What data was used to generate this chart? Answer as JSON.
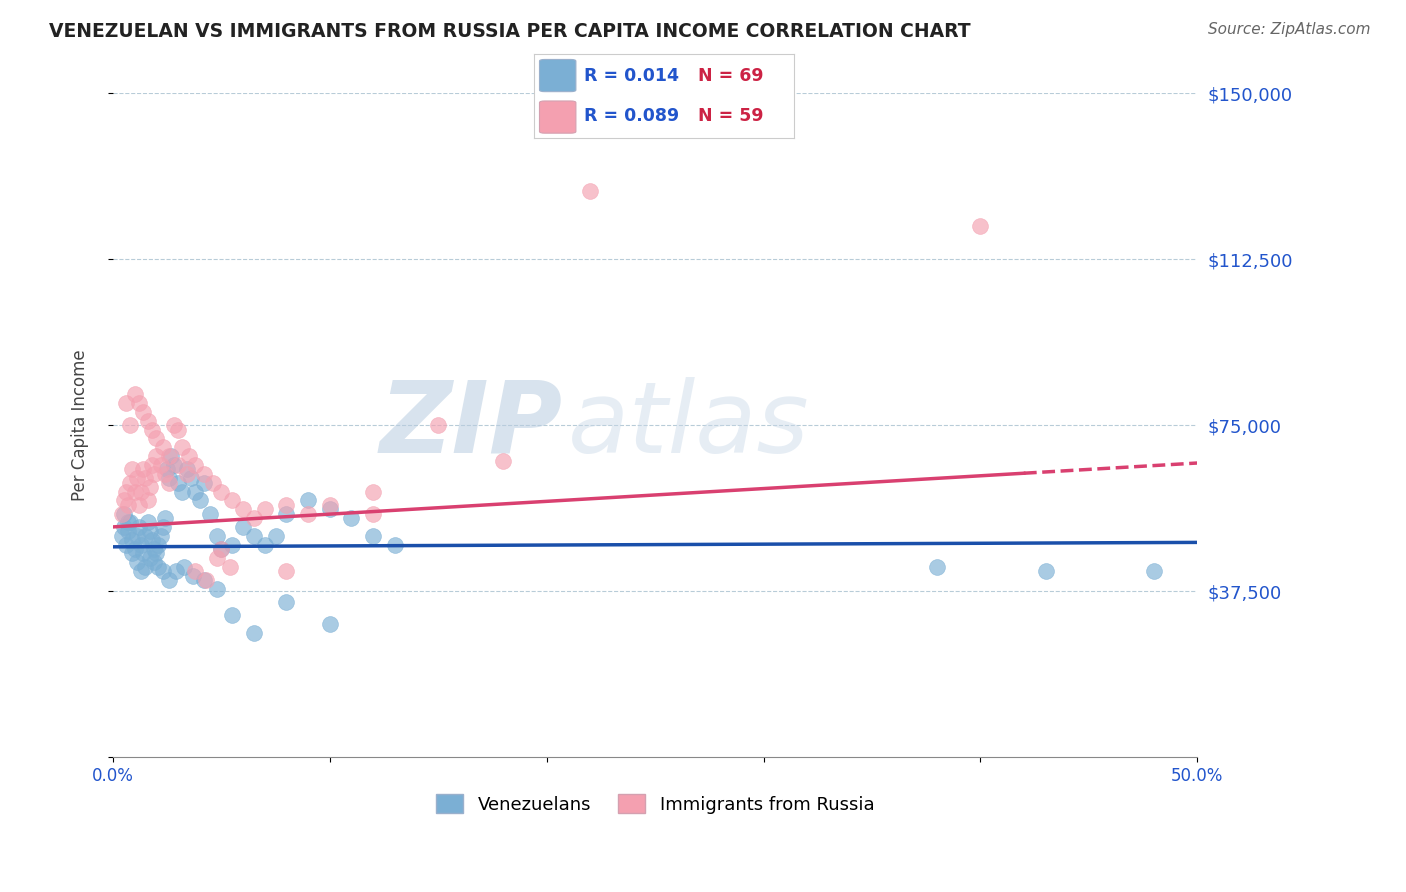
{
  "title": "VENEZUELAN VS IMMIGRANTS FROM RUSSIA PER CAPITA INCOME CORRELATION CHART",
  "source": "Source: ZipAtlas.com",
  "ylabel": "Per Capita Income",
  "yticks": [
    0,
    37500,
    75000,
    112500,
    150000
  ],
  "ytick_labels": [
    "",
    "$37,500",
    "$75,000",
    "$112,500",
    "$150,000"
  ],
  "xlim": [
    0.0,
    0.5
  ],
  "ylim": [
    0,
    150000
  ],
  "legend_r1": "R = 0.014",
  "legend_n1": "N = 69",
  "legend_r2": "R = 0.089",
  "legend_n2": "N = 59",
  "legend_label1": "Venezuelans",
  "legend_label2": "Immigrants from Russia",
  "blue_color": "#7bafd4",
  "pink_color": "#f4a0b0",
  "line_blue": "#1a4faa",
  "line_pink": "#d94070",
  "watermark_zip": "ZIP",
  "watermark_atlas": "atlas",
  "venezuelan_x": [
    0.004,
    0.005,
    0.006,
    0.007,
    0.008,
    0.009,
    0.01,
    0.011,
    0.012,
    0.013,
    0.014,
    0.015,
    0.016,
    0.017,
    0.018,
    0.019,
    0.02,
    0.021,
    0.022,
    0.023,
    0.024,
    0.025,
    0.026,
    0.027,
    0.028,
    0.03,
    0.032,
    0.034,
    0.036,
    0.038,
    0.04,
    0.042,
    0.045,
    0.048,
    0.05,
    0.055,
    0.06,
    0.065,
    0.07,
    0.075,
    0.08,
    0.09,
    0.1,
    0.11,
    0.12,
    0.13,
    0.005,
    0.007,
    0.009,
    0.011,
    0.013,
    0.015,
    0.017,
    0.019,
    0.021,
    0.023,
    0.026,
    0.029,
    0.033,
    0.037,
    0.042,
    0.048,
    0.055,
    0.065,
    0.08,
    0.1,
    0.38,
    0.43,
    0.48
  ],
  "venezuelan_y": [
    50000,
    52000,
    48000,
    51000,
    53000,
    49000,
    47000,
    50000,
    52000,
    48000,
    46000,
    50000,
    53000,
    51000,
    49000,
    47000,
    46000,
    48000,
    50000,
    52000,
    54000,
    65000,
    63000,
    68000,
    66000,
    62000,
    60000,
    65000,
    63000,
    60000,
    58000,
    62000,
    55000,
    50000,
    47000,
    48000,
    52000,
    50000,
    48000,
    50000,
    55000,
    58000,
    56000,
    54000,
    50000,
    48000,
    55000,
    53000,
    46000,
    44000,
    42000,
    43000,
    45000,
    44000,
    43000,
    42000,
    40000,
    42000,
    43000,
    41000,
    40000,
    38000,
    32000,
    28000,
    35000,
    30000,
    43000,
    42000,
    42000
  ],
  "russia_x": [
    0.004,
    0.005,
    0.006,
    0.007,
    0.008,
    0.009,
    0.01,
    0.011,
    0.012,
    0.013,
    0.014,
    0.015,
    0.016,
    0.017,
    0.018,
    0.019,
    0.02,
    0.022,
    0.024,
    0.026,
    0.028,
    0.03,
    0.032,
    0.035,
    0.038,
    0.042,
    0.046,
    0.05,
    0.055,
    0.06,
    0.065,
    0.07,
    0.08,
    0.09,
    0.1,
    0.12,
    0.15,
    0.18,
    0.006,
    0.008,
    0.01,
    0.012,
    0.014,
    0.016,
    0.018,
    0.02,
    0.023,
    0.026,
    0.03,
    0.034,
    0.038,
    0.043,
    0.048,
    0.054,
    0.22,
    0.4,
    0.05,
    0.08,
    0.12
  ],
  "russia_y": [
    55000,
    58000,
    60000,
    57000,
    62000,
    65000,
    60000,
    63000,
    57000,
    60000,
    65000,
    63000,
    58000,
    61000,
    66000,
    64000,
    68000,
    66000,
    64000,
    62000,
    75000,
    74000,
    70000,
    68000,
    66000,
    64000,
    62000,
    60000,
    58000,
    56000,
    54000,
    56000,
    57000,
    55000,
    57000,
    60000,
    75000,
    67000,
    80000,
    75000,
    82000,
    80000,
    78000,
    76000,
    74000,
    72000,
    70000,
    68000,
    66000,
    64000,
    42000,
    40000,
    45000,
    43000,
    128000,
    120000,
    47000,
    42000,
    55000
  ]
}
